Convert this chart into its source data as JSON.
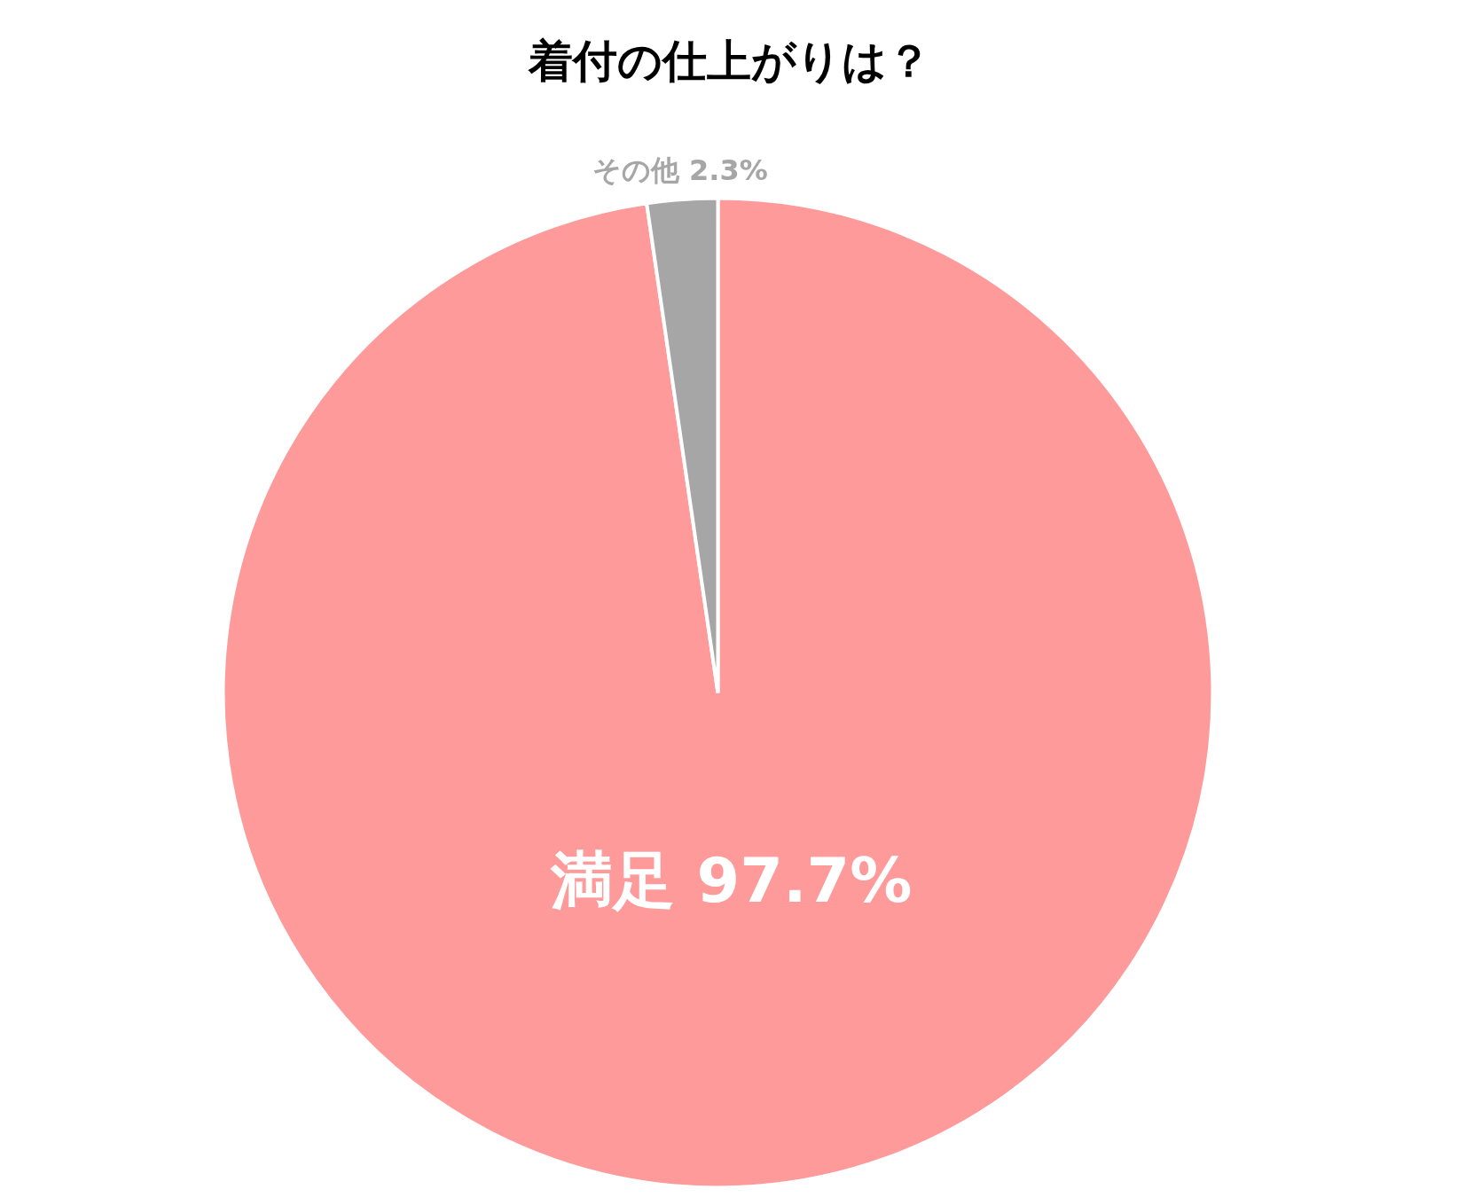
{
  "chart_data": {
    "type": "pie",
    "title": "着付の仕上がりは？",
    "categories": [
      "満足",
      "その他"
    ],
    "values": [
      97.7,
      2.3
    ],
    "colors": [
      "#fe9a9a",
      "#a6a6a6"
    ],
    "value_labels": [
      "97.7%",
      "2.3%"
    ]
  }
}
